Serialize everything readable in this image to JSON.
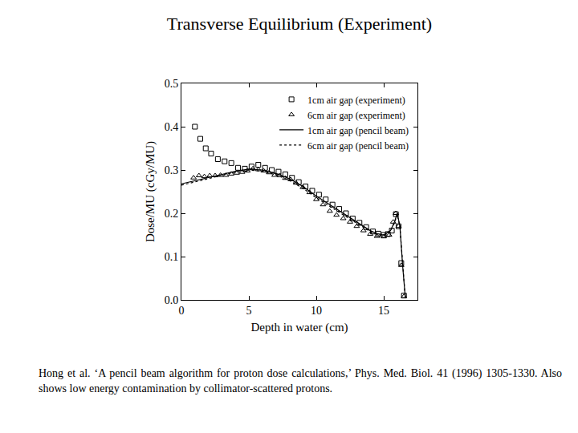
{
  "chart_data": {
    "type": "scatter",
    "title": "Transverse Equilibrium (Experiment)",
    "x_label": "Depth in water (cm)",
    "y_label": "Dose/MU (cGy/MU)",
    "caption": "Hong et al. ‘A pencil beam algorithm for proton dose calculations,’ Phys. Med. Biol. 41 (1996) 1305-1330. Also shows low energy contamination by collimator-scattered protons.",
    "xlim": [
      0,
      17.5
    ],
    "xticks": [
      0,
      5,
      10,
      15
    ],
    "ylim": [
      0,
      0.5
    ],
    "yticks": [
      {
        "value": 0,
        "label": "0.0"
      },
      0.1,
      0.2,
      0.3,
      0.4,
      0.5
    ],
    "grid": false,
    "legend": "top right",
    "series": [
      {
        "name": "1cm air gap (experiment)",
        "type": "scatter",
        "marker": "square",
        "color": "#000000",
        "x": [
          1.0,
          1.4,
          1.8,
          2.2,
          2.7,
          3.2,
          3.7,
          4.2,
          4.7,
          5.2,
          5.7,
          6.2,
          6.7,
          7.2,
          7.7,
          8.2,
          8.7,
          9.2,
          9.7,
          10.2,
          10.7,
          11.2,
          11.7,
          12.2,
          12.7,
          13.2,
          13.7,
          14.2,
          14.6,
          15.0,
          15.3,
          15.6,
          15.9,
          16.1,
          16.3,
          16.5
        ],
        "values": [
          0.4,
          0.372,
          0.35,
          0.338,
          0.325,
          0.32,
          0.316,
          0.305,
          0.303,
          0.308,
          0.312,
          0.305,
          0.3,
          0.296,
          0.29,
          0.282,
          0.272,
          0.262,
          0.252,
          0.243,
          0.232,
          0.22,
          0.21,
          0.2,
          0.188,
          0.178,
          0.168,
          0.158,
          0.153,
          0.15,
          0.152,
          0.16,
          0.198,
          0.17,
          0.085,
          0.01
        ]
      },
      {
        "name": "6cm air gap (experiment)",
        "type": "scatter",
        "marker": "triangle",
        "color": "#000000",
        "x": [
          0.9,
          1.3,
          1.7,
          2.1,
          2.5,
          2.9,
          3.3,
          3.7,
          4.1,
          4.5,
          4.9,
          5.3,
          5.7,
          6.1,
          6.5,
          6.9,
          7.3,
          7.7,
          8.1,
          8.5,
          9.0,
          9.5,
          10.0,
          10.5,
          11.0,
          11.5,
          12.0,
          12.5,
          13.0,
          13.5,
          14.0,
          14.5,
          15.0,
          15.4,
          15.7,
          15.9,
          16.1,
          16.3,
          16.5
        ],
        "values": [
          0.282,
          0.287,
          0.285,
          0.287,
          0.287,
          0.288,
          0.288,
          0.291,
          0.293,
          0.295,
          0.298,
          0.303,
          0.301,
          0.298,
          0.294,
          0.288,
          0.287,
          0.281,
          0.278,
          0.27,
          0.26,
          0.248,
          0.232,
          0.22,
          0.205,
          0.196,
          0.188,
          0.18,
          0.17,
          0.16,
          0.152,
          0.147,
          0.146,
          0.15,
          0.18,
          0.2,
          0.17,
          0.08,
          0.008
        ]
      },
      {
        "name": "1cm air gap (pencil beam)",
        "type": "line",
        "line_style": "solid",
        "color": "#000000",
        "x": [
          0,
          1,
          2,
          3,
          4,
          5,
          6,
          7,
          8,
          9,
          10,
          11,
          12,
          13,
          14,
          14.5,
          15,
          15.5,
          15.8,
          16.0,
          16.2,
          16.4,
          16.6
        ],
        "values": [
          0.268,
          0.275,
          0.283,
          0.29,
          0.297,
          0.302,
          0.3,
          0.292,
          0.28,
          0.262,
          0.24,
          0.22,
          0.2,
          0.18,
          0.16,
          0.153,
          0.15,
          0.16,
          0.18,
          0.2,
          0.17,
          0.08,
          0.005
        ]
      },
      {
        "name": "6cm air gap (pencil beam)",
        "type": "line",
        "line_style": "dotted",
        "color": "#000000",
        "x": [
          0,
          1,
          2,
          3,
          4,
          5,
          6,
          7,
          8,
          9,
          10,
          11,
          12,
          13,
          14,
          14.5,
          15,
          15.5,
          15.8,
          16.0,
          16.2,
          16.4,
          16.6
        ],
        "values": [
          0.265,
          0.272,
          0.28,
          0.288,
          0.295,
          0.3,
          0.297,
          0.289,
          0.276,
          0.258,
          0.236,
          0.216,
          0.196,
          0.177,
          0.158,
          0.151,
          0.148,
          0.158,
          0.178,
          0.198,
          0.168,
          0.078,
          0.005
        ]
      }
    ]
  }
}
